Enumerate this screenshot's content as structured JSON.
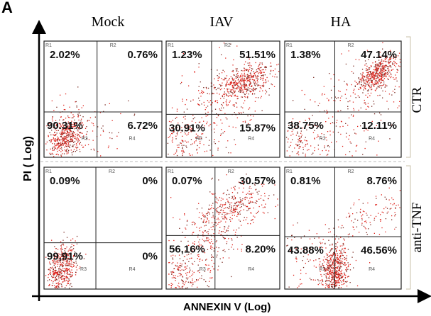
{
  "figure_label": "A",
  "chart_data": {
    "type": "scatter",
    "xlabel": "ANNEXIN V (Log)",
    "ylabel": "PI ( Log)",
    "x_scale": "log",
    "y_scale": "log",
    "columns": [
      "Mock",
      "IAV",
      "HA"
    ],
    "rows": [
      "CTR",
      "anti-TNF"
    ],
    "region_labels": [
      "R1",
      "R2",
      "R3",
      "R4"
    ],
    "point_color": "#e0261f",
    "panels": [
      {
        "column": "Mock",
        "row": "CTR",
        "R1": "2.02%",
        "R2": "0.76%",
        "R3": "90.31%",
        "R4": "6.72%"
      },
      {
        "column": "IAV",
        "row": "CTR",
        "R1": "1.23%",
        "R2": "51.51%",
        "R3": "30.91%",
        "R4": "15.87%"
      },
      {
        "column": "HA",
        "row": "CTR",
        "R1": "1.38%",
        "R2": "47.14%",
        "R3": "38.75%",
        "R4": "12.11%"
      },
      {
        "column": "Mock",
        "row": "anti-TNF",
        "R1": "0.09%",
        "R2": "0%",
        "R3": "99,91%",
        "R4": "0%"
      },
      {
        "column": "IAV",
        "row": "anti-TNF",
        "R1": "0.07%",
        "R2": "30.57%",
        "R3": "56,16%",
        "R4": "8.20%"
      },
      {
        "column": "HA",
        "row": "anti-TNF",
        "R1": "0.81%",
        "R2": "8.76%",
        "R3": "43.88%",
        "R4": "46.56%"
      }
    ]
  }
}
